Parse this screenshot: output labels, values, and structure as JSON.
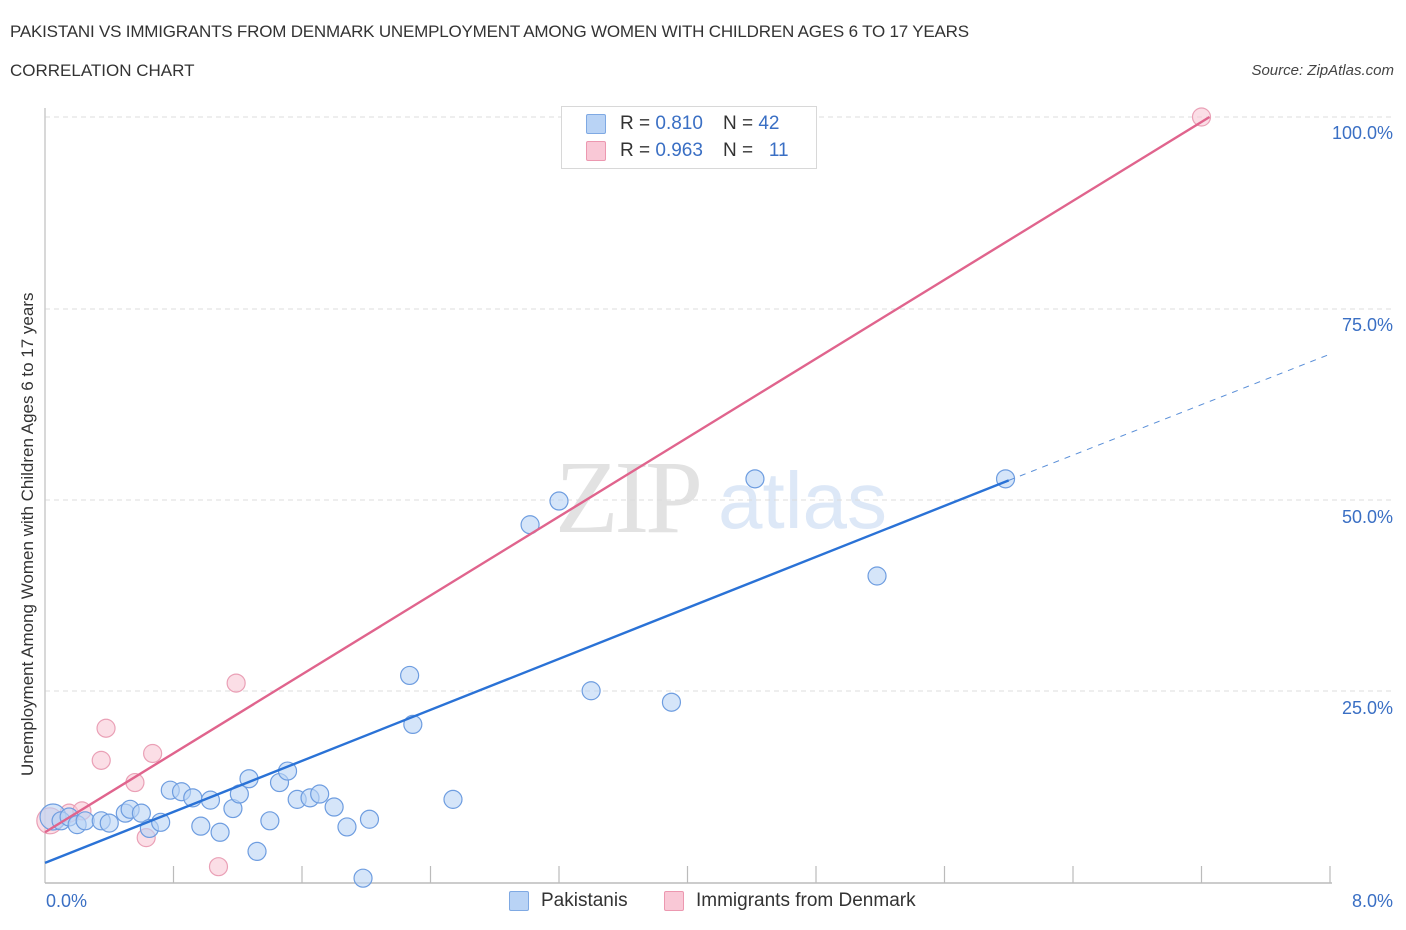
{
  "header": {
    "title": "PAKISTANI VS IMMIGRANTS FROM DENMARK UNEMPLOYMENT AMONG WOMEN WITH CHILDREN AGES 6 TO 17 YEARS",
    "subtitle": "CORRELATION CHART",
    "source": "Source: ZipAtlas.com"
  },
  "watermark": {
    "zip": "ZIP",
    "atlas": "atlas"
  },
  "legend": {
    "rows": [
      {
        "r_label": "R =",
        "r_value": "0.810",
        "n_label": "N =",
        "n_value": "42",
        "color": "#b9d3f5"
      },
      {
        "r_label": "R =",
        "r_value": "0.963",
        "n_label": "N =",
        "n_value": "11",
        "color": "#f9c8d6"
      }
    ],
    "series": [
      "Pakistanis",
      "Immigrants from Denmark"
    ]
  },
  "axes": {
    "ylabel": "Unemployment Among Women with Children Ages 6 to 17 years",
    "y_ticks": [
      "100.0%",
      "75.0%",
      "50.0%",
      "25.0%"
    ],
    "x_ticks": [
      "0.0%",
      "8.0%"
    ]
  },
  "colors": {
    "blue_line": "#2a72d6",
    "pink_line": "#e0648d",
    "blue_fill": "#b9d3f5",
    "pink_fill": "#f9c8d6",
    "tick_label": "#3a6fc4"
  },
  "chart_data": {
    "type": "scatter",
    "title": "PAKISTANI VS IMMIGRANTS FROM DENMARK UNEMPLOYMENT AMONG WOMEN WITH CHILDREN AGES 6 TO 17 YEARS",
    "subtitle": "CORRELATION CHART",
    "xlabel": "",
    "ylabel": "Unemployment Among Women with Children Ages 6 to 17 years",
    "xlim": [
      0,
      8
    ],
    "ylim": [
      0,
      100
    ],
    "x_unit": "%",
    "y_unit": "%",
    "grid": "horizontal dashed at 25, 50, 75, 100",
    "legend_position": "bottom-center",
    "series": [
      {
        "name": "Pakistanis",
        "R": 0.81,
        "N": 42,
        "color": "#b9d3f5",
        "trendline": {
          "x": [
            0.0,
            6.0
          ],
          "y": [
            2.5,
            52.5
          ],
          "dashed_extension_to": [
            8.0,
            69.0
          ]
        },
        "points": [
          [
            0.05,
            8.5
          ],
          [
            0.1,
            8.0
          ],
          [
            0.15,
            8.5
          ],
          [
            0.2,
            7.5
          ],
          [
            0.25,
            8.0
          ],
          [
            0.35,
            8.0
          ],
          [
            0.4,
            7.7
          ],
          [
            0.5,
            9.0
          ],
          [
            0.53,
            9.5
          ],
          [
            0.6,
            9.0
          ],
          [
            0.65,
            7.0
          ],
          [
            0.72,
            7.8
          ],
          [
            0.78,
            12.0
          ],
          [
            0.85,
            11.8
          ],
          [
            0.92,
            11.0
          ],
          [
            0.97,
            7.3
          ],
          [
            1.03,
            10.7
          ],
          [
            1.09,
            6.5
          ],
          [
            1.17,
            9.6
          ],
          [
            1.21,
            11.5
          ],
          [
            1.27,
            13.5
          ],
          [
            1.32,
            4.0
          ],
          [
            1.4,
            8.0
          ],
          [
            1.46,
            13.0
          ],
          [
            1.51,
            14.5
          ],
          [
            1.57,
            10.8
          ],
          [
            1.65,
            11.0
          ],
          [
            1.71,
            11.5
          ],
          [
            1.8,
            9.8
          ],
          [
            1.88,
            7.2
          ],
          [
            1.98,
            0.5
          ],
          [
            2.02,
            8.2
          ],
          [
            2.29,
            20.6
          ],
          [
            2.27,
            27.0
          ],
          [
            2.54,
            10.8
          ],
          [
            3.02,
            46.7
          ],
          [
            3.2,
            49.8
          ],
          [
            3.4,
            25.0
          ],
          [
            3.9,
            23.5
          ],
          [
            4.42,
            52.7
          ],
          [
            5.18,
            40.0
          ],
          [
            5.98,
            52.7
          ]
        ]
      },
      {
        "name": "Immigrants from Denmark",
        "R": 0.963,
        "N": 11,
        "color": "#f9c8d6",
        "trendline": {
          "x": [
            0.0,
            7.25
          ],
          "y": [
            6.5,
            100.0
          ]
        },
        "points": [
          [
            0.03,
            8.0
          ],
          [
            0.15,
            9.0
          ],
          [
            0.23,
            9.3
          ],
          [
            0.35,
            15.9
          ],
          [
            0.38,
            20.1
          ],
          [
            0.56,
            13.0
          ],
          [
            0.63,
            5.8
          ],
          [
            0.67,
            16.8
          ],
          [
            1.08,
            2.0
          ],
          [
            1.19,
            26.0
          ],
          [
            7.2,
            100.0
          ]
        ]
      }
    ]
  }
}
